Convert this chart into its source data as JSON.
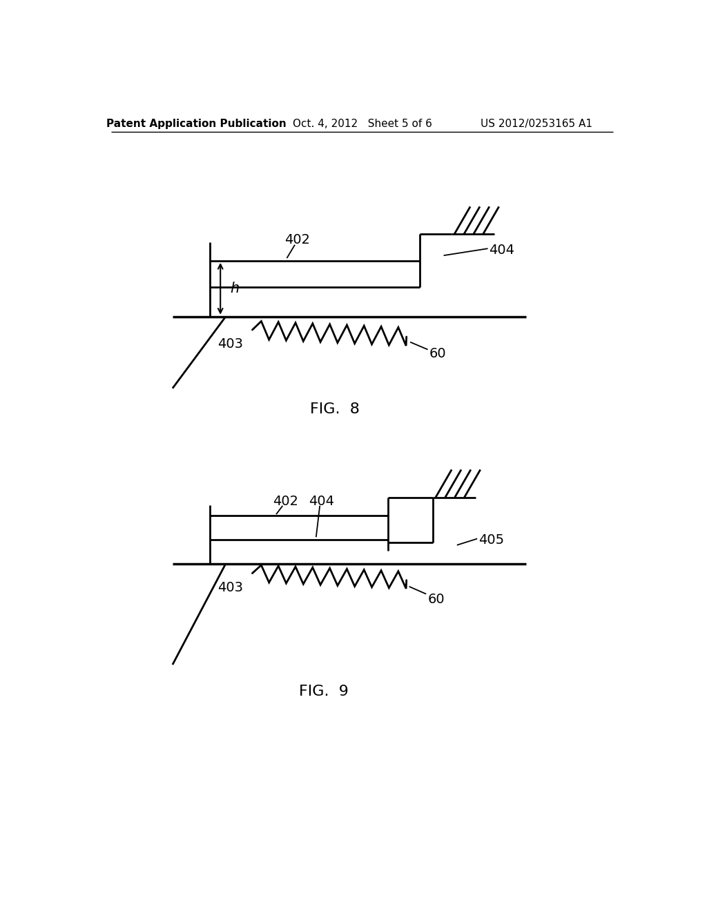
{
  "bg_color": "#ffffff",
  "text_color": "#000000",
  "line_color": "#000000",
  "header_left": "Patent Application Publication",
  "header_center": "Oct. 4, 2012   Sheet 5 of 6",
  "header_right": "US 2012/0253165 A1",
  "fig8_label": "FIG.  8",
  "fig9_label": "FIG.  9",
  "lw": 2.0
}
